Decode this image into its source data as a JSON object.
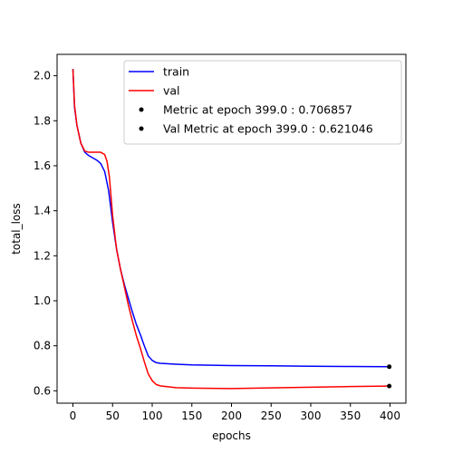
{
  "chart_data": {
    "type": "line",
    "title": "",
    "xlabel": "epochs",
    "ylabel": "total_loss",
    "xlim": [
      -20,
      420
    ],
    "ylim": [
      0.545,
      2.095
    ],
    "xticks": [
      0,
      50,
      100,
      150,
      200,
      250,
      300,
      350,
      400
    ],
    "yticks": [
      0.6,
      0.8,
      1.0,
      1.2,
      1.4,
      1.6,
      1.8,
      2.0
    ],
    "xtick_labels": [
      "0",
      "50",
      "100",
      "150",
      "200",
      "250",
      "300",
      "350",
      "400"
    ],
    "ytick_labels": [
      "0.6",
      "0.8",
      "1.0",
      "1.2",
      "1.4",
      "1.6",
      "1.8",
      "2.0"
    ],
    "grid": false,
    "legend_position": "top-right",
    "series": [
      {
        "name": "train",
        "color": "#0000ff",
        "x": [
          0,
          2,
          5,
          10,
          15,
          20,
          25,
          30,
          35,
          40,
          45,
          50,
          55,
          60,
          65,
          70,
          75,
          80,
          85,
          90,
          95,
          100,
          105,
          110,
          120,
          130,
          150,
          200,
          250,
          300,
          350,
          399
        ],
        "y": [
          2.03,
          1.86,
          1.78,
          1.7,
          1.66,
          1.645,
          1.635,
          1.625,
          1.61,
          1.575,
          1.49,
          1.35,
          1.23,
          1.14,
          1.07,
          1.01,
          0.95,
          0.895,
          0.85,
          0.8,
          0.755,
          0.735,
          0.725,
          0.722,
          0.72,
          0.718,
          0.715,
          0.712,
          0.711,
          0.709,
          0.708,
          0.706857
        ]
      },
      {
        "name": "val",
        "color": "#ff0000",
        "x": [
          0,
          2,
          5,
          10,
          15,
          20,
          25,
          30,
          35,
          40,
          43,
          46,
          50,
          55,
          60,
          65,
          70,
          75,
          80,
          85,
          90,
          95,
          100,
          105,
          110,
          120,
          130,
          150,
          200,
          250,
          300,
          350,
          399
        ],
        "y": [
          2.03,
          1.87,
          1.78,
          1.7,
          1.665,
          1.66,
          1.66,
          1.66,
          1.66,
          1.65,
          1.62,
          1.55,
          1.38,
          1.23,
          1.14,
          1.06,
          0.98,
          0.91,
          0.845,
          0.79,
          0.73,
          0.675,
          0.645,
          0.628,
          0.622,
          0.618,
          0.614,
          0.612,
          0.61,
          0.613,
          0.616,
          0.619,
          0.621046
        ]
      }
    ],
    "markers": [
      {
        "name": "Metric at epoch 399.0 : 0.706857",
        "x": 399,
        "y": 0.706857,
        "color": "#000000"
      },
      {
        "name": "Val Metric at epoch 399.0 : 0.621046",
        "x": 399,
        "y": 0.621046,
        "color": "#000000"
      }
    ]
  }
}
